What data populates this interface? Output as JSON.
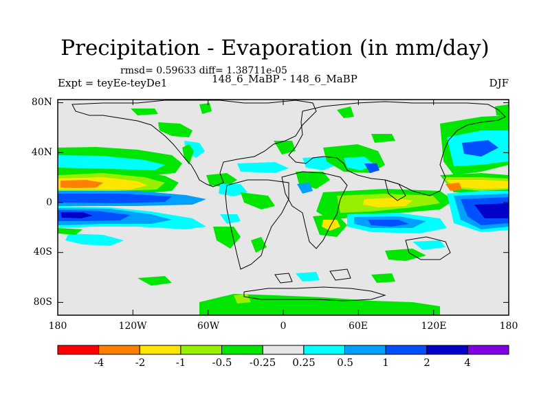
{
  "title": "Precipitation - Evaporation (in mm/day)",
  "stats": "rmsd= 0.59633 diff= 1.38711e-05",
  "subtitle": "148_6_MaBP - 148_6_MaBP",
  "experiment": "Expt = teyEe-teyDe1",
  "season": "DJF",
  "axes": {
    "x_ticks": [
      "180",
      "120W",
      "60W",
      "0",
      "60E",
      "120E",
      "180"
    ],
    "y_ticks": [
      "80N",
      "40N",
      "0",
      "40S",
      "80S"
    ]
  },
  "colorbar": {
    "colors": [
      "#ff0000",
      "#ff8000",
      "#ffe600",
      "#96f000",
      "#00e600",
      "#e6e6e6",
      "#00ffff",
      "#00a0ff",
      "#0050ff",
      "#0000c8",
      "#8000e0"
    ],
    "labels": [
      "-4",
      "-2",
      "-1",
      "-0.5",
      "-0.25",
      "0.25",
      "0.5",
      "1",
      "2",
      "4"
    ]
  }
}
